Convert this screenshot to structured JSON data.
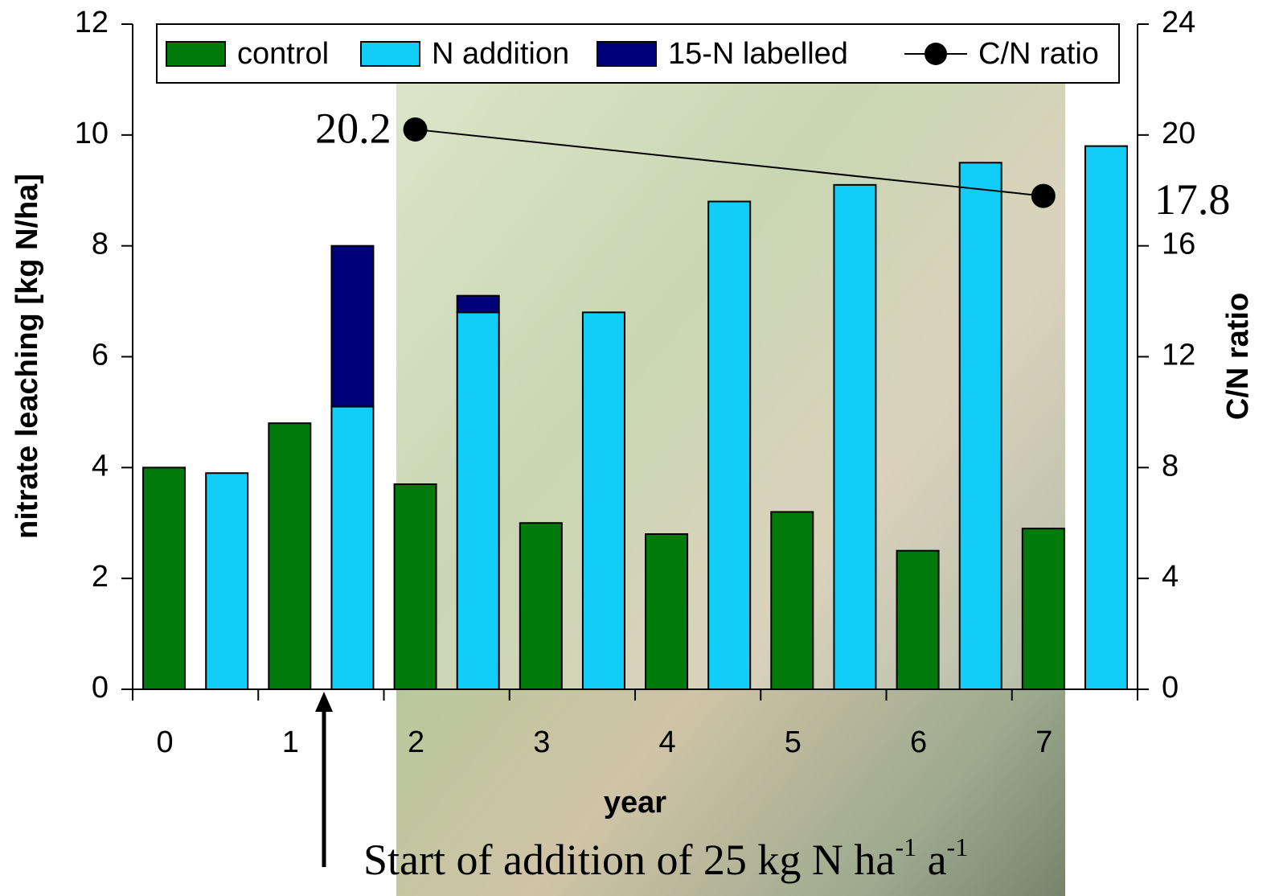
{
  "chart_data": {
    "type": "bar",
    "x_label": "year",
    "y_label": "nitrate leaching [kg N/ha]",
    "y2_label": "C/N ratio",
    "categories": [
      "0",
      "1",
      "2",
      "3",
      "4",
      "5",
      "6",
      "7"
    ],
    "series": [
      {
        "name": "control",
        "type": "bar",
        "color": "#007a0a",
        "values": [
          4.0,
          4.8,
          3.7,
          3.0,
          2.8,
          3.2,
          2.5,
          2.9
        ]
      },
      {
        "name": "N addition",
        "type": "bar",
        "color": "#12cdf8",
        "values": [
          3.9,
          5.1,
          6.8,
          6.8,
          8.8,
          9.1,
          9.5,
          9.8
        ]
      },
      {
        "name": "15-N labelled",
        "type": "bar",
        "color": "#00007a",
        "stack": "N addition",
        "values": [
          null,
          2.9,
          0.3,
          null,
          null,
          null,
          null,
          null
        ]
      },
      {
        "name": "C/N ratio",
        "type": "line",
        "color": "#000000",
        "axis": "y2",
        "values": [
          null,
          null,
          20.2,
          null,
          null,
          null,
          null,
          17.8
        ]
      }
    ],
    "ylim": [
      0,
      12
    ],
    "yticks": [
      0,
      2,
      4,
      6,
      8,
      10,
      12
    ],
    "y2lim": [
      0,
      24
    ],
    "y2ticks": [
      0,
      4,
      8,
      12,
      16,
      20,
      24
    ],
    "grid": false,
    "legend": "top",
    "annotation": [
      "Start of addition of 25 kg N ha",
      "-1",
      " a",
      "-1"
    ]
  }
}
